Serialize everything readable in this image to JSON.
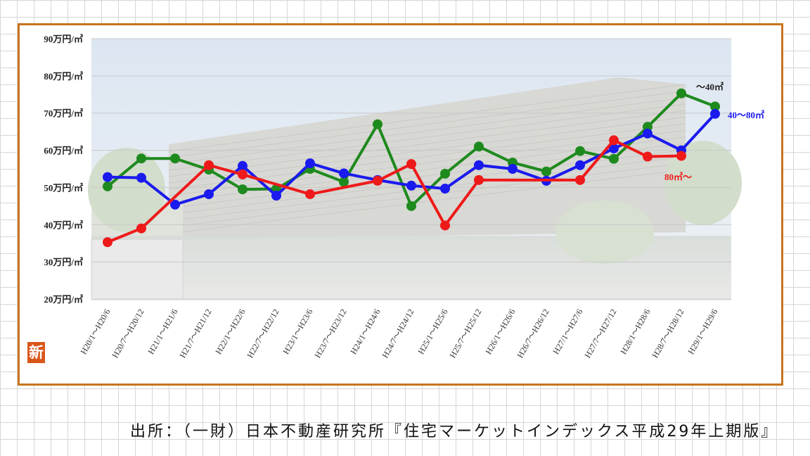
{
  "source_note": "出所：（一財）日本不動産研究所『住宅マーケットインデックス平成29年上期版』",
  "badge_text": "新",
  "chart_data": {
    "type": "line",
    "title": "",
    "xlabel": "",
    "ylabel": "",
    "ylim": [
      20,
      90
    ],
    "y_ticks": [
      {
        "value": 90,
        "label": "90万円/㎡"
      },
      {
        "value": 80,
        "label": "80万円/㎡"
      },
      {
        "value": 70,
        "label": "70万円/㎡"
      },
      {
        "value": 60,
        "label": "60万円/㎡"
      },
      {
        "value": 50,
        "label": "50万円/㎡"
      },
      {
        "value": 40,
        "label": "40万円/㎡"
      },
      {
        "value": 30,
        "label": "30万円/㎡"
      },
      {
        "value": 20,
        "label": "20万円/㎡"
      }
    ],
    "categories": [
      "H20/1～H20/6",
      "H20/7～H20/12",
      "H21/1～H21/6",
      "H21/7～H21/12",
      "H22/1～H22/6",
      "H22/7～H22/12",
      "H23/1～H23/6",
      "H23/7～H23/12",
      "H24/1～H24/6",
      "H24/7～H24/12",
      "H25/1～H25/6",
      "H25/7～H25/12",
      "H26/1～H26/6",
      "H26/7～H26/12",
      "H27/1～H27/6",
      "H27/7～H27/12",
      "H28/1～H28/6",
      "H28/7～H28/12",
      "H29/1～H29/6"
    ],
    "grid": true,
    "series": [
      {
        "name": "～40㎡",
        "color": "#1e8a1e",
        "values": [
          50.3,
          57.8,
          57.8,
          54.8,
          49.5,
          49.6,
          55.0,
          51.5,
          67.0,
          45.0,
          53.7,
          61.0,
          56.7,
          54.3,
          59.8,
          57.7,
          66.3,
          75.3,
          71.8
        ]
      },
      {
        "name": "40～80㎡",
        "color": "#1a1aee",
        "values": [
          52.8,
          52.6,
          45.4,
          48.2,
          55.8,
          47.8,
          56.5,
          53.8,
          52.0,
          50.5,
          49.7,
          56.0,
          55.0,
          51.8,
          56.0,
          60.5,
          64.5,
          60.0,
          69.8
        ]
      },
      {
        "name": "80㎡～",
        "color": "#ee1a1a",
        "values": [
          35.3,
          39.0,
          null,
          56.0,
          53.5,
          null,
          48.2,
          null,
          51.8,
          56.3,
          39.8,
          52.0,
          null,
          null,
          52.0,
          62.7,
          58.3,
          58.5,
          null
        ]
      }
    ]
  }
}
